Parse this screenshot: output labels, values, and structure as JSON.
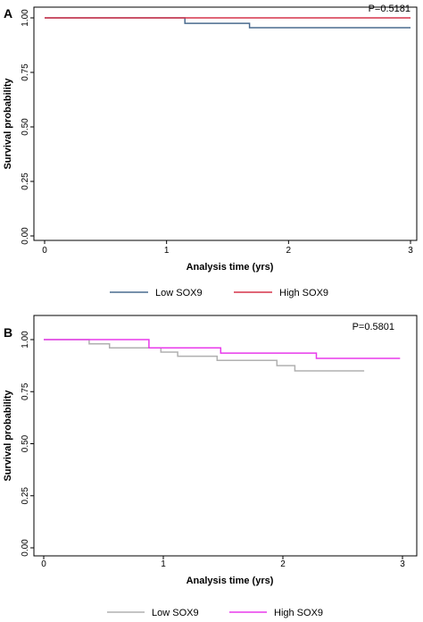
{
  "chart_data": [
    {
      "type": "line",
      "panel_label": "A",
      "annotation": "P=0.5181",
      "xlabel": "Analysis time (yrs)",
      "ylabel": "Survival probability",
      "xlim": [
        0,
        3
      ],
      "ylim": [
        0,
        1
      ],
      "x_ticks": [
        "0",
        "1",
        "2",
        "3"
      ],
      "y_ticks": [
        "0.00",
        "0.25",
        "0.50",
        "0.75",
        "1.00"
      ],
      "legend_position": "bottom",
      "series": [
        {
          "name": "Low SOX9",
          "color": "#4a6b8f",
          "x": [
            0,
            1.15,
            1.15,
            1.68,
            1.68,
            3.0
          ],
          "y": [
            1.0,
            1.0,
            0.975,
            0.975,
            0.955,
            0.955
          ]
        },
        {
          "name": "High SOX9",
          "color": "#d6334a",
          "x": [
            0,
            3.0
          ],
          "y": [
            1.0,
            1.0
          ]
        }
      ]
    },
    {
      "type": "line",
      "panel_label": "B",
      "annotation": "P=0.5801",
      "xlabel": "Analysis time (yrs)",
      "ylabel": "Survival probability",
      "xlim": [
        0,
        3
      ],
      "ylim": [
        0,
        1
      ],
      "x_ticks": [
        "0",
        "1",
        "2",
        "3"
      ],
      "y_ticks": [
        "0.00",
        "0.25",
        "0.50",
        "0.75",
        "1.00"
      ],
      "legend_position": "bottom",
      "series": [
        {
          "name": "Low SOX9",
          "color": "#b0b0b0",
          "x": [
            0,
            0.38,
            0.38,
            0.55,
            0.55,
            0.98,
            0.98,
            1.12,
            1.12,
            1.45,
            1.45,
            1.95,
            1.95,
            2.1,
            2.1,
            2.68
          ],
          "y": [
            1.0,
            1.0,
            0.98,
            0.98,
            0.96,
            0.96,
            0.94,
            0.94,
            0.92,
            0.92,
            0.9,
            0.9,
            0.875,
            0.875,
            0.85,
            0.85
          ]
        },
        {
          "name": "High SOX9",
          "color": "#e83aeb",
          "x": [
            0,
            0.88,
            0.88,
            1.48,
            1.48,
            2.28,
            2.28,
            2.98
          ],
          "y": [
            1.0,
            1.0,
            0.96,
            0.96,
            0.935,
            0.935,
            0.91,
            0.91
          ]
        }
      ]
    }
  ]
}
